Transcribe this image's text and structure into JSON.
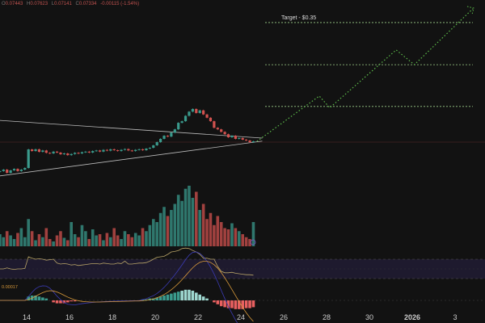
{
  "header": {
    "o_label": "O",
    "o": "0.07443",
    "h_label": "H",
    "h": "0.07623",
    "l_label": "L",
    "l": "0.07141",
    "c_label": "C",
    "c": "0.07334",
    "change": "-0.00115 (-1.54%)"
  },
  "colors": {
    "up": "#3a9a8c",
    "down": "#d2524f",
    "projection": "#5dbb4a",
    "target_line": "#9ecf8a",
    "rsi": "#b8a468",
    "macd": "#3b3bb3",
    "signal": "#d99a3b"
  },
  "chart_data": {
    "type": "candlestick",
    "title": "",
    "target_label": "Target - $0.35",
    "targets": [
      0.35,
      0.201,
      0.116
    ],
    "x_ticks": [
      {
        "day": 14,
        "label": "14"
      },
      {
        "day": 16,
        "label": "16"
      },
      {
        "day": 18,
        "label": "18"
      },
      {
        "day": 20,
        "label": "20"
      },
      {
        "day": 22,
        "label": "22"
      },
      {
        "day": 24,
        "label": "24"
      },
      {
        "day": 26,
        "label": "26"
      },
      {
        "day": 28,
        "label": "28"
      },
      {
        "day": 30,
        "label": "30"
      },
      {
        "day": 32,
        "label": "2026"
      },
      {
        "day": 34,
        "label": "3"
      }
    ],
    "start_day": 12.75,
    "candles_per_day": 6,
    "closes": [
      0.0495,
      0.0505,
      0.0484,
      0.05,
      0.051,
      0.0495,
      0.0505,
      0.0516,
      0.0659,
      0.0645,
      0.066,
      0.0638,
      0.065,
      0.063,
      0.0625,
      0.064,
      0.0632,
      0.0618,
      0.0625,
      0.0611,
      0.062,
      0.063,
      0.0625,
      0.0635,
      0.064,
      0.0632,
      0.0645,
      0.065,
      0.064,
      0.0655,
      0.0648,
      0.066,
      0.0652,
      0.0645,
      0.0655,
      0.0662,
      0.065,
      0.0645,
      0.0655,
      0.066,
      0.0652,
      0.0666,
      0.0673,
      0.0695,
      0.0725,
      0.0757,
      0.0789,
      0.078,
      0.0822,
      0.0858,
      0.0935,
      0.0955,
      0.1025,
      0.1083,
      0.1122,
      0.1064,
      0.1102,
      0.1044,
      0.1,
      0.0955,
      0.0876,
      0.0858,
      0.083,
      0.0805,
      0.0773,
      0.0789,
      0.0757,
      0.0765,
      0.0749,
      0.0741,
      0.0725,
      0.0733
    ],
    "volumes": [
      20,
      15,
      25,
      18,
      12,
      22,
      30,
      15,
      45,
      25,
      10,
      20,
      15,
      30,
      12,
      8,
      18,
      25,
      14,
      10,
      40,
      20,
      15,
      35,
      25,
      12,
      28,
      18,
      20,
      10,
      22,
      15,
      30,
      18,
      12,
      25,
      20,
      15,
      22,
      18,
      30,
      25,
      35,
      45,
      40,
      55,
      65,
      50,
      60,
      70,
      85,
      75,
      95,
      100,
      80,
      90,
      60,
      70,
      45,
      55,
      35,
      50,
      40,
      30,
      28,
      38,
      30,
      25,
      20,
      15,
      12,
      40
    ],
    "rsi": [
      50,
      50,
      52,
      50,
      49,
      50,
      50,
      51,
      75,
      72,
      70,
      71,
      70,
      68,
      69,
      70,
      62,
      60,
      61,
      60,
      58,
      59,
      57,
      58,
      59,
      60,
      61,
      61,
      60,
      62,
      61,
      60,
      60,
      62,
      61,
      66,
      60,
      60,
      61,
      62,
      62,
      63,
      66,
      70,
      74,
      75,
      76,
      80,
      85,
      86,
      88,
      92,
      93,
      92,
      88,
      85,
      80,
      72,
      72,
      70,
      70,
      55,
      45,
      42,
      42,
      43,
      41,
      40,
      39,
      38,
      38,
      37
    ],
    "macd_hist": [
      0,
      0,
      0,
      0,
      0,
      0,
      0,
      0,
      4,
      5,
      5,
      4,
      3,
      2,
      0,
      -2,
      -3,
      -3,
      -3,
      -2,
      -1,
      -1,
      0,
      0,
      0,
      0,
      0,
      0,
      0,
      0,
      0,
      0,
      0,
      0,
      0,
      0,
      0,
      0,
      0,
      0,
      1,
      1,
      2,
      2,
      3,
      4,
      5,
      6,
      7,
      8,
      9,
      10,
      11,
      11,
      10,
      8,
      6,
      4,
      2,
      0,
      -2,
      -4,
      -6,
      -7,
      -8,
      -8,
      -9,
      -9,
      -9,
      -8,
      -8,
      -7
    ],
    "projection": [
      {
        "day": 24.75,
        "price": 0.0733
      },
      {
        "day": 27.66,
        "price": 0.133
      },
      {
        "day": 28.15,
        "price": 0.114
      },
      {
        "day": 31.25,
        "price": 0.244
      },
      {
        "day": 32.1,
        "price": 0.201
      },
      {
        "day": 34.83,
        "price": 0.42
      }
    ],
    "trendlines": [
      {
        "from": {
          "day": 12.75,
          "price": 0.0965
        },
        "to": {
          "day": 25,
          "price": 0.0765
        }
      },
      {
        "from": {
          "day": 12.75,
          "price": 0.0465
        },
        "to": {
          "day": 25,
          "price": 0.0735
        }
      }
    ],
    "macd_label": "0.00017"
  }
}
